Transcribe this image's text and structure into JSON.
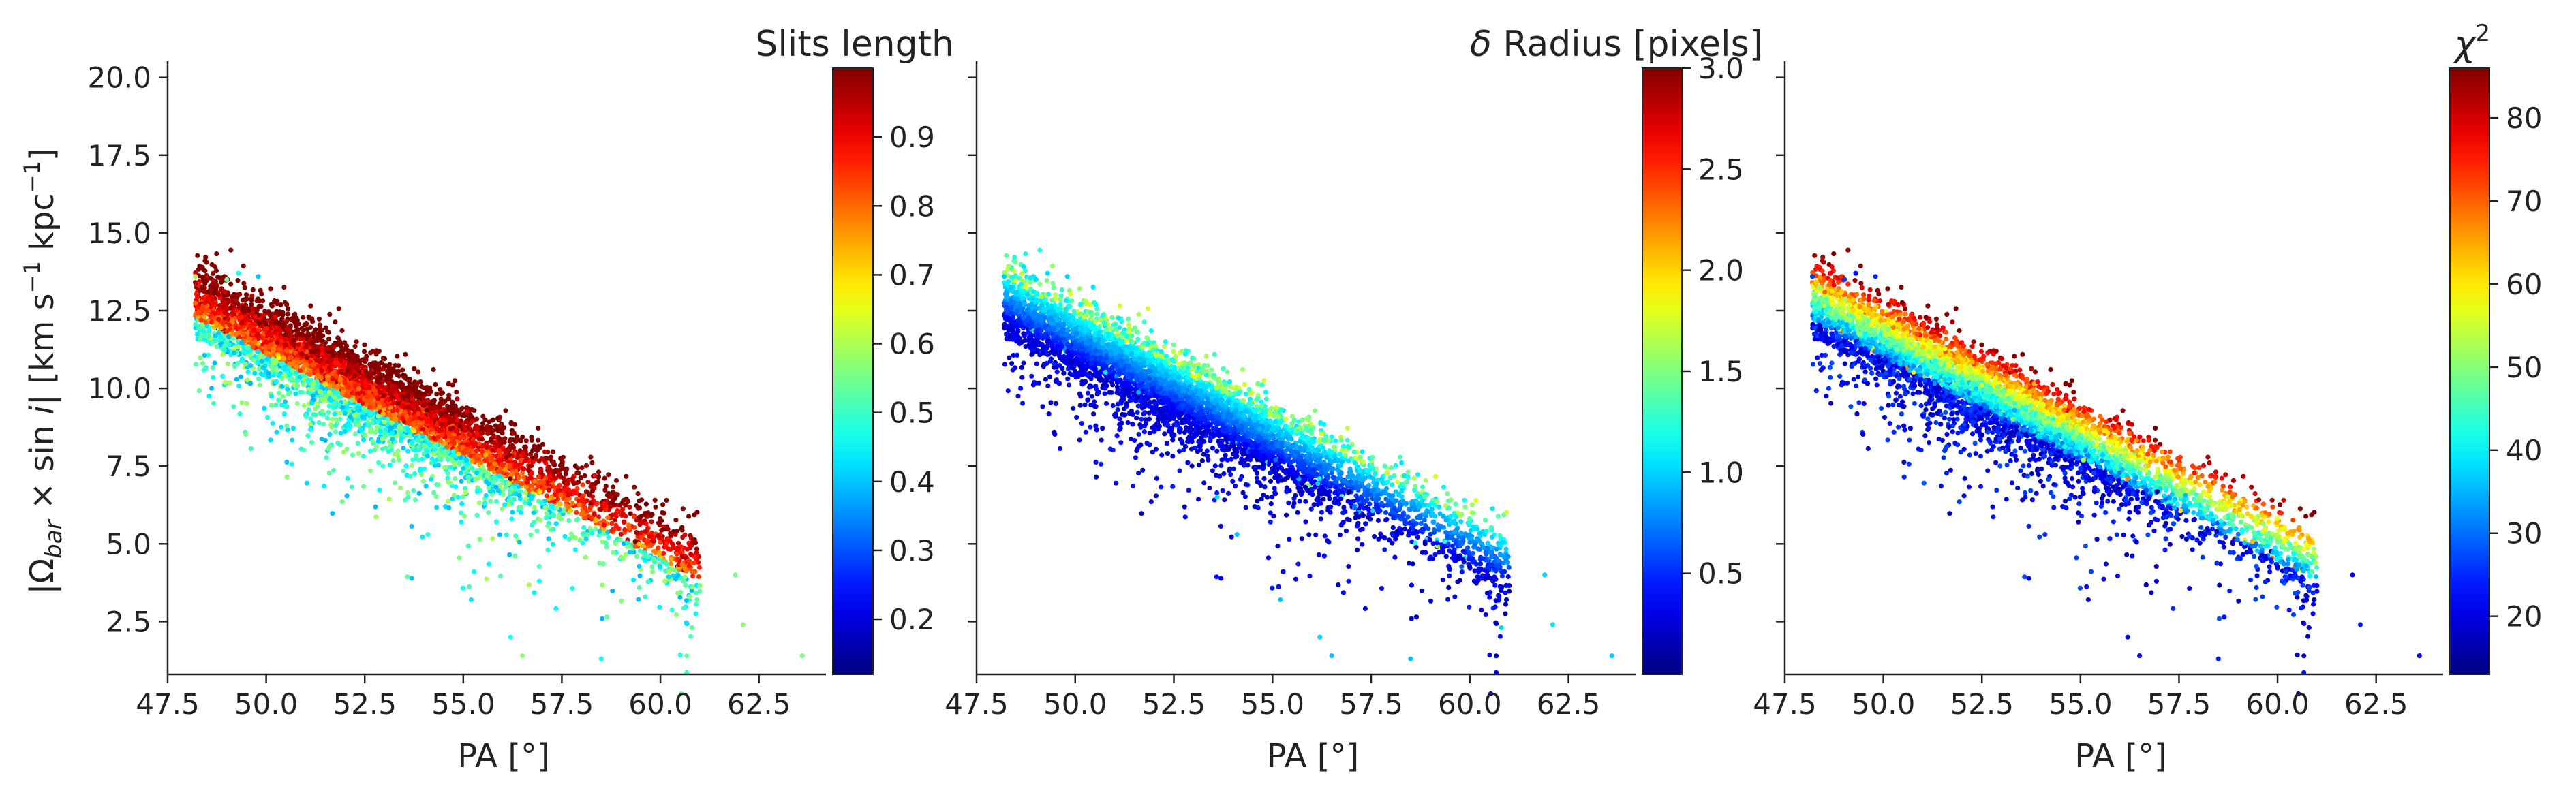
{
  "chart_data": [
    {
      "type": "scatter",
      "panel": 1,
      "xlabel": "PA [°]",
      "ylabel": "|Ω_bar × sin i|   [km s⁻¹ kpc⁻¹]",
      "xlim": [
        47.5,
        64.2
      ],
      "ylim": [
        0.8,
        20.3
      ],
      "x_ticks": [
        47.5,
        50.0,
        52.5,
        55.0,
        57.5,
        60.0,
        62.5
      ],
      "x_tick_labels": [
        "47.5",
        "50.0",
        "52.5",
        "55.0",
        "57.5",
        "60.0",
        "62.5"
      ],
      "y_ticks": [
        2.5,
        5.0,
        7.5,
        10.0,
        12.5,
        15.0,
        17.5,
        20.0
      ],
      "y_tick_labels": [
        "2.5",
        "5.0",
        "7.5",
        "10.0",
        "12.5",
        "15.0",
        "17.5",
        "20.0"
      ],
      "grid": false,
      "colorbar": {
        "title": "Slits length",
        "colormap": "jet",
        "range": [
          0.12,
          1.0
        ],
        "ticks": [
          0.2,
          0.3,
          0.4,
          0.5,
          0.6,
          0.7,
          0.8,
          0.9
        ],
        "tick_labels": [
          "0.2",
          "0.3",
          "0.4",
          "0.5",
          "0.6",
          "0.7",
          "0.8",
          "0.9"
        ]
      },
      "color_trend": "high values (red) across upper part of the band, low values (blue/cyan) at lower edge",
      "point_cloud": {
        "n_points": 5000,
        "x_range": [
          48.2,
          63.6
        ],
        "y_at_x50": 11.6,
        "y_at_x60": 5.0,
        "approx_relation": "y ≈ 11.6 − 0.66 × (x − 50)"
      }
    },
    {
      "type": "scatter",
      "panel": 2,
      "xlabel": "PA [°]",
      "ylabel": "",
      "xlim": [
        47.5,
        64.2
      ],
      "ylim": [
        0.8,
        20.3
      ],
      "x_ticks": [
        47.5,
        50.0,
        52.5,
        55.0,
        57.5,
        60.0,
        62.5
      ],
      "x_tick_labels": [
        "47.5",
        "50.0",
        "52.5",
        "55.0",
        "57.5",
        "60.0",
        "62.5"
      ],
      "grid": false,
      "colorbar": {
        "title": "δ Radius [pixels]",
        "colormap": "jet",
        "range": [
          0.0,
          3.0
        ],
        "ticks": [
          0.5,
          1.0,
          1.5,
          2.0,
          2.5,
          3.0
        ],
        "tick_labels": [
          "0.5",
          "1.0",
          "1.5",
          "2.0",
          "2.5",
          "3.0"
        ]
      },
      "color_trend": "mostly low values (blue) in the core, higher (cyan/yellow) along the upper edge",
      "point_cloud": {
        "n_points": 5000,
        "x_range": [
          48.2,
          63.6
        ],
        "y_at_x50": 11.6,
        "y_at_x60": 5.0,
        "approx_relation": "y ≈ 11.6 − 0.66 × (x − 50)"
      }
    },
    {
      "type": "scatter",
      "panel": 3,
      "xlabel": "PA [°]",
      "ylabel": "",
      "xlim": [
        47.5,
        64.2
      ],
      "ylim": [
        0.8,
        20.3
      ],
      "x_ticks": [
        47.5,
        50.0,
        52.5,
        55.0,
        57.5,
        60.0,
        62.5
      ],
      "x_tick_labels": [
        "47.5",
        "50.0",
        "52.5",
        "55.0",
        "57.5",
        "60.0",
        "62.5"
      ],
      "grid": false,
      "colorbar": {
        "title": "χ²",
        "colormap": "jet",
        "range": [
          13.0,
          86.0
        ],
        "ticks": [
          20,
          30,
          40,
          50,
          60,
          70,
          80
        ],
        "tick_labels": [
          "20",
          "30",
          "40",
          "50",
          "60",
          "70",
          "80"
        ]
      },
      "color_trend": "low values (blue) on the lower side, rising to cyan/yellow toward the upper side of the band",
      "point_cloud": {
        "n_points": 5000,
        "x_range": [
          48.2,
          63.6
        ],
        "y_at_x50": 11.6,
        "y_at_x60": 5.0,
        "approx_relation": "y ≈ 11.6 − 0.66 × (x − 50)"
      }
    }
  ]
}
